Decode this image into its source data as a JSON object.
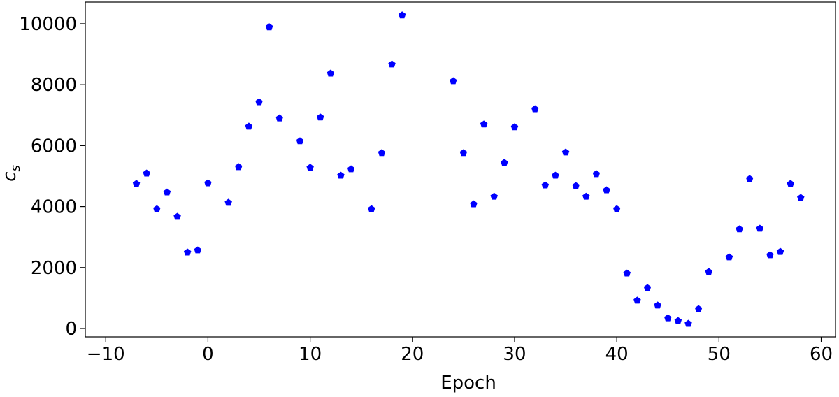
{
  "chart_data": {
    "type": "scatter",
    "xlabel": "Epoch",
    "ylabel": "c",
    "ylabel_subscript": "s",
    "x": [
      -7,
      -6,
      -5,
      -4,
      -3,
      -2,
      -1,
      0,
      2,
      3,
      4,
      5,
      6,
      7,
      9,
      10,
      11,
      12,
      13,
      14,
      16,
      17,
      18,
      19,
      24,
      25,
      26,
      27,
      28,
      29,
      30,
      32,
      33,
      34,
      35,
      36,
      37,
      38,
      39,
      40,
      41,
      42,
      43,
      44,
      45,
      46,
      47,
      48,
      49,
      51,
      52,
      53,
      54,
      55,
      56,
      57,
      58
    ],
    "series": [
      {
        "color": "#0000ff",
        "marker": "pentagon",
        "values": [
          4750,
          5090,
          3920,
          4470,
          3670,
          2500,
          2570,
          4770,
          4130,
          5300,
          6630,
          7430,
          9890,
          6900,
          6150,
          5280,
          6930,
          8370,
          5020,
          5230,
          3920,
          5760,
          8670,
          10280,
          8120,
          5760,
          4080,
          6700,
          4330,
          5440,
          6610,
          7200,
          4700,
          5020,
          5780,
          4680,
          4330,
          5070,
          4540,
          3920,
          1810,
          920,
          1330,
          760,
          340,
          250,
          160,
          640,
          1860,
          2340,
          3260,
          4910,
          3280,
          2410,
          2520,
          4750,
          4290
        ]
      }
    ],
    "xlim": [
      -12,
      61.4
    ],
    "ylim": [
      -275,
      10710
    ],
    "xticks": [
      {
        "value": -10,
        "label": "−10"
      },
      0,
      10,
      20,
      30,
      40,
      50,
      60
    ],
    "yticks": [
      0,
      2000,
      4000,
      6000,
      8000,
      10000
    ],
    "grid": false
  }
}
